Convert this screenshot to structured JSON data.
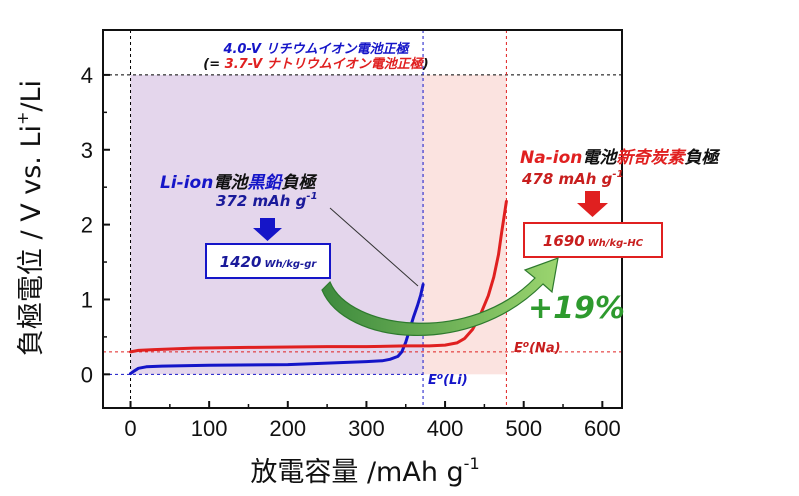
{
  "chart_data": {
    "type": "line",
    "xlabel": {
      "main": "放電容量 /mAh g",
      "sup": "-1"
    },
    "ylabel": {
      "main": "負極電位 / V vs. Li",
      "sup": "+",
      "tail": "/Li"
    },
    "xlim": [
      -35,
      625
    ],
    "ylim": [
      -0.45,
      4.6
    ],
    "xticks": [
      "0",
      "100",
      "200",
      "300",
      "400",
      "500",
      "600"
    ],
    "yticks": [
      "0",
      "1",
      "2",
      "3",
      "4"
    ],
    "grid": false,
    "series": [
      {
        "color": "#1515c8",
        "x": [
          0,
          4,
          10,
          20,
          40,
          100,
          200,
          250,
          300,
          320,
          330,
          340,
          345,
          350,
          355,
          360,
          365,
          369,
          372
        ],
        "y": [
          0.01,
          0.04,
          0.08,
          0.1,
          0.11,
          0.12,
          0.13,
          0.15,
          0.17,
          0.18,
          0.2,
          0.24,
          0.3,
          0.43,
          0.6,
          0.77,
          0.92,
          1.06,
          1.2
        ]
      },
      {
        "color": "#e02020",
        "x": [
          0,
          10,
          30,
          80,
          150,
          250,
          300,
          350,
          380,
          400,
          415,
          425,
          435,
          445,
          455,
          462,
          468,
          472,
          475,
          478
        ],
        "y": [
          0.3,
          0.32,
          0.33,
          0.35,
          0.36,
          0.37,
          0.37,
          0.38,
          0.38,
          0.39,
          0.42,
          0.48,
          0.6,
          0.8,
          1.05,
          1.3,
          1.6,
          1.9,
          2.1,
          2.31
        ]
      }
    ],
    "regions": [
      {
        "x": [
          0,
          372
        ],
        "y": [
          0,
          4
        ],
        "color": "#e4d6ec"
      },
      {
        "x": [
          372,
          478
        ],
        "y": [
          0,
          4
        ],
        "color": "#fbe3e0"
      }
    ],
    "reference_lines": [
      {
        "kind": "h",
        "value": 4.0,
        "color": "#000000"
      },
      {
        "kind": "v",
        "value": 0,
        "color": "#000000"
      },
      {
        "kind": "h",
        "value": 0.0,
        "x_end": 372,
        "color": "#1515c8"
      },
      {
        "kind": "v",
        "value": 372,
        "color": "#1515c8"
      },
      {
        "kind": "h",
        "value": 0.3,
        "color": "#e02020"
      },
      {
        "kind": "v",
        "value": 478,
        "color": "#e02020"
      }
    ]
  },
  "annotations": {
    "top_line1": "4.0-V リチウムイオン電池正極",
    "top_line2_open": "(= ",
    "top_line2_red": "3.7-V ナトリウムイオン電池正極",
    "top_line2_close": ")",
    "li_title_a": "Li-ion",
    "li_title_b": "電池",
    "li_title_c": "黒鉛",
    "li_title_d": "負極",
    "li_capacity": "372 mAh g",
    "li_capacity_sup": "-1",
    "li_energy_value": "1420",
    "li_energy_unit": "Wh/kg-gr",
    "na_title_a": "Na-ion",
    "na_title_b": "電池",
    "na_title_c": "新奇炭素",
    "na_title_d": "負極",
    "na_capacity": "478 mAh g",
    "na_capacity_sup": "-1",
    "na_energy_value": "1690",
    "na_energy_unit": "Wh/kg-HC",
    "gain": "+19%",
    "eo_li_e": "E",
    "eo_li_o": "o",
    "eo_li_tail": "(Li)",
    "eo_na_e": "E",
    "eo_na_o": "o",
    "eo_na_tail": "(Na)"
  },
  "colors": {
    "blue": "#1515c8",
    "red": "#e02020",
    "green": "#2e9a2e",
    "dark_blue": "#1a1a9a",
    "dark_red": "#c81e1e"
  }
}
